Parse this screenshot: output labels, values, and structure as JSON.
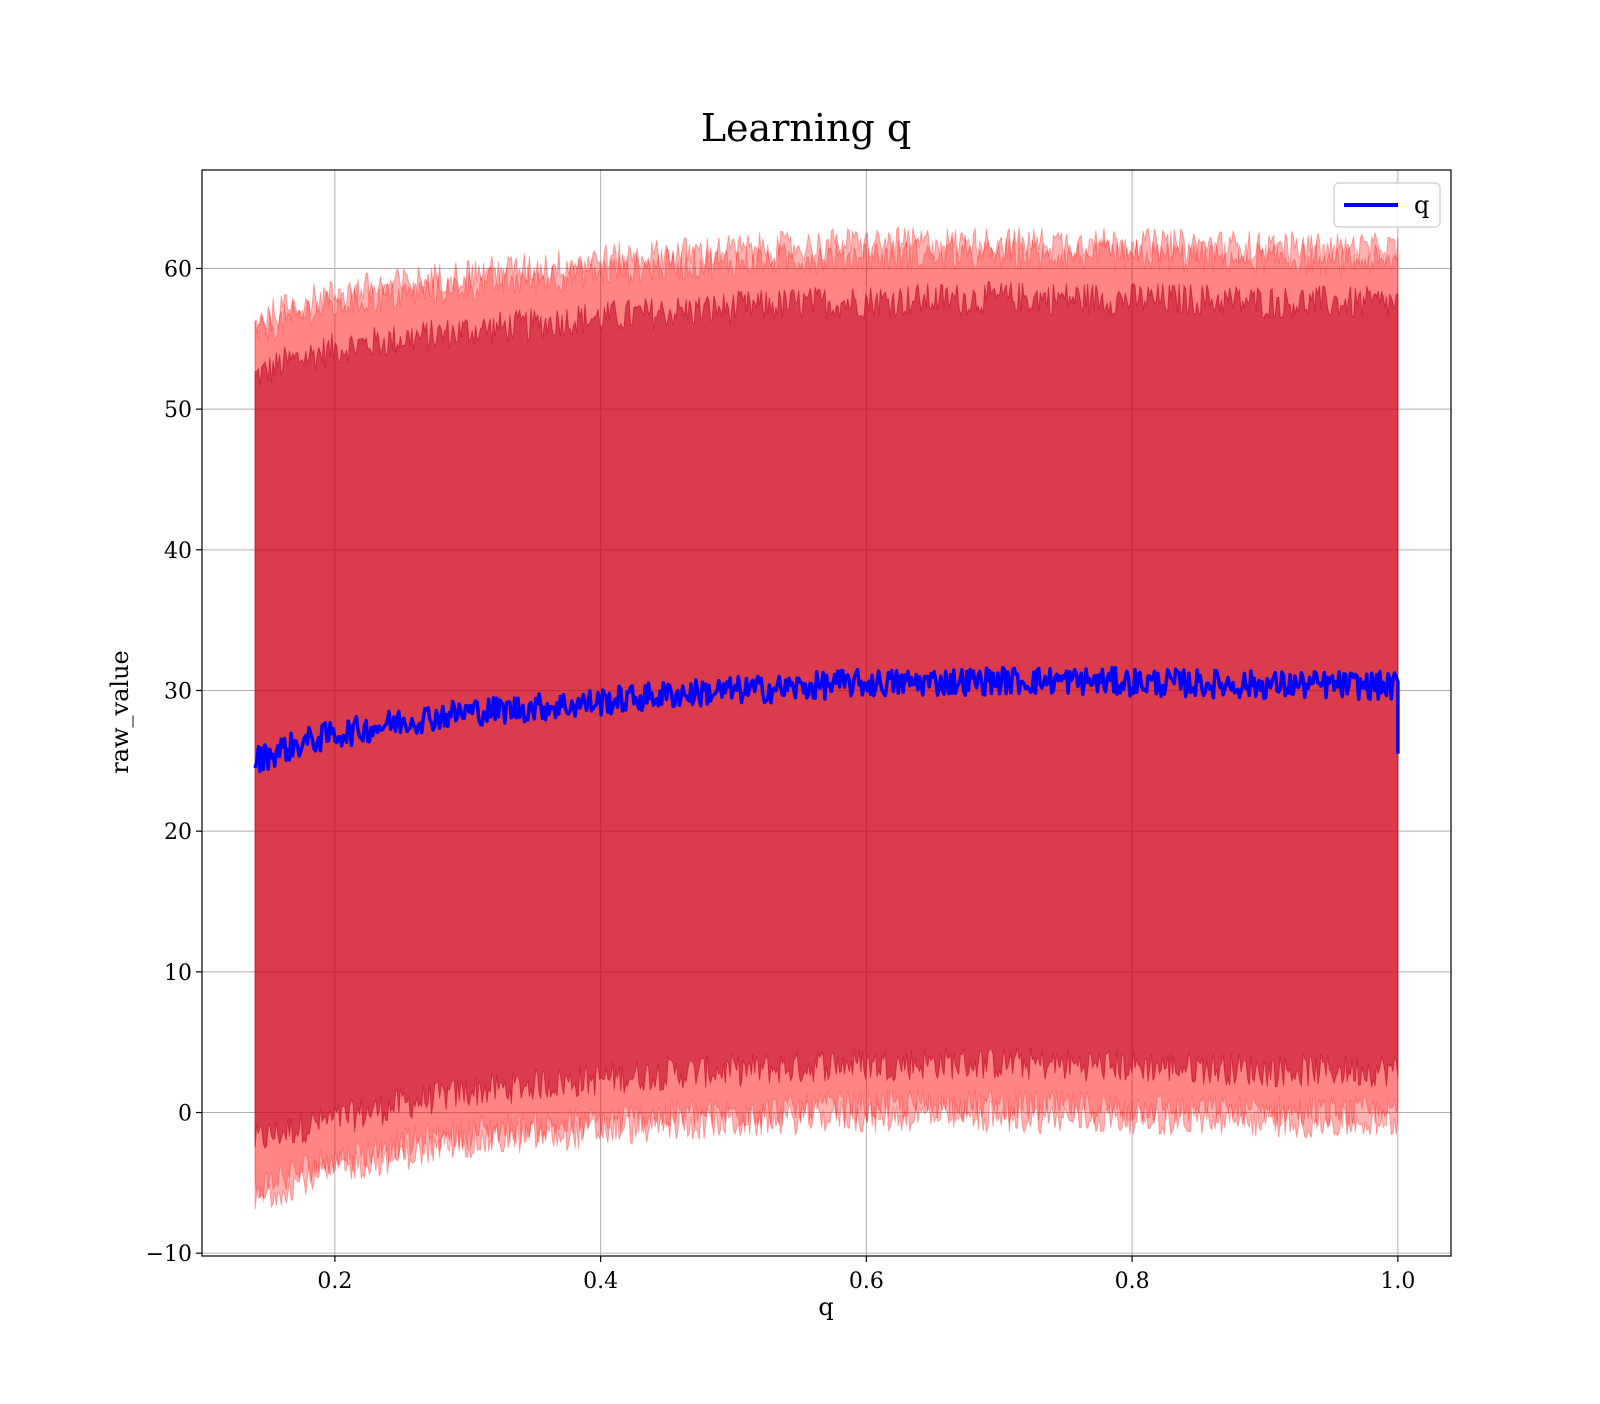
{
  "chart_data": {
    "type": "line",
    "title": "Learning q",
    "xlabel": "q",
    "ylabel": "raw_value",
    "xlim": [
      0.1,
      1.04
    ],
    "ylim": [
      -10.2,
      67
    ],
    "x_ticks": [
      0.2,
      0.4,
      0.6,
      0.8,
      1.0
    ],
    "x_tick_labels": [
      "0.2",
      "0.4",
      "0.6",
      "0.8",
      "1.0"
    ],
    "y_ticks": [
      -10,
      0,
      10,
      20,
      30,
      40,
      50,
      60
    ],
    "y_tick_labels": [
      "−10",
      "0",
      "10",
      "20",
      "30",
      "40",
      "50",
      "60"
    ],
    "grid": true,
    "legend": {
      "position": "upper right",
      "entries": [
        {
          "name": "q",
          "color": "#0000ff"
        }
      ]
    },
    "series": [
      {
        "name": "q",
        "color": "#0000ff",
        "x": [
          0.14,
          0.16,
          0.18,
          0.2,
          0.22,
          0.25,
          0.28,
          0.3,
          0.325,
          0.35,
          0.38,
          0.4,
          0.45,
          0.5,
          0.55,
          0.58,
          0.6,
          0.65,
          0.7,
          0.75,
          0.8,
          0.85,
          0.9,
          0.95,
          1.0
        ],
        "mean": [
          25.0,
          25.8,
          26.4,
          26.9,
          27.2,
          27.8,
          28.2,
          28.5,
          28.6,
          28.8,
          29.0,
          29.2,
          29.7,
          30.0,
          30.2,
          30.5,
          30.5,
          30.6,
          30.7,
          30.7,
          30.6,
          30.5,
          30.4,
          30.4,
          30.3
        ]
      }
    ],
    "bands": [
      {
        "color": "#800040",
        "opacity": 0.55,
        "lower": [
          -2.0,
          -1.4,
          -0.9,
          -0.5,
          -0.1,
          0.6,
          1.1,
          1.5,
          1.7,
          2.0,
          2.2,
          2.4,
          2.8,
          3.0,
          3.2,
          3.5,
          3.4,
          3.5,
          3.5,
          3.4,
          3.3,
          3.2,
          3.0,
          3.0,
          3.0
        ],
        "upper": [
          52.3,
          53.2,
          53.8,
          54.3,
          54.6,
          55.0,
          55.3,
          55.6,
          55.8,
          56.0,
          56.4,
          56.5,
          56.9,
          57.2,
          57.5,
          57.6,
          57.7,
          57.8,
          57.9,
          57.9,
          57.8,
          57.8,
          57.6,
          57.6,
          57.5
        ]
      },
      {
        "color": "#ff0000",
        "opacity": 0.25,
        "lower": [
          -5.5,
          -4.6,
          -3.9,
          -3.4,
          -2.9,
          -2.3,
          -1.8,
          -1.4,
          -1.2,
          -1.0,
          -0.8,
          -0.6,
          -0.2,
          0.0,
          0.2,
          0.5,
          0.4,
          0.5,
          0.5,
          0.4,
          0.3,
          0.2,
          0.1,
          0.0,
          0.0
        ],
        "upper": [
          55.5,
          56.2,
          57.0,
          57.4,
          57.8,
          58.1,
          58.5,
          58.8,
          59.0,
          59.2,
          59.6,
          59.8,
          60.2,
          60.5,
          60.7,
          60.9,
          60.9,
          61.0,
          61.0,
          61.0,
          60.9,
          60.8,
          60.7,
          60.6,
          60.5
        ]
      },
      {
        "color": "#ff0000",
        "opacity": 0.3,
        "lower": [
          -6.3,
          -5.4,
          -4.6,
          -4.0,
          -3.6,
          -3.0,
          -2.5,
          -2.1,
          -1.9,
          -1.7,
          -1.5,
          -1.3,
          -0.9,
          -0.7,
          -0.4,
          -0.2,
          -0.3,
          -0.2,
          -0.3,
          -0.4,
          -0.4,
          -0.5,
          -0.6,
          -0.7,
          -0.7
        ],
        "upper": [
          56.2,
          57.0,
          57.7,
          58.1,
          58.5,
          58.9,
          59.3,
          59.6,
          59.8,
          60.0,
          60.4,
          60.6,
          61.0,
          61.3,
          61.5,
          61.7,
          61.7,
          61.8,
          61.8,
          61.8,
          61.7,
          61.6,
          61.5,
          61.4,
          61.3
        ]
      }
    ]
  }
}
